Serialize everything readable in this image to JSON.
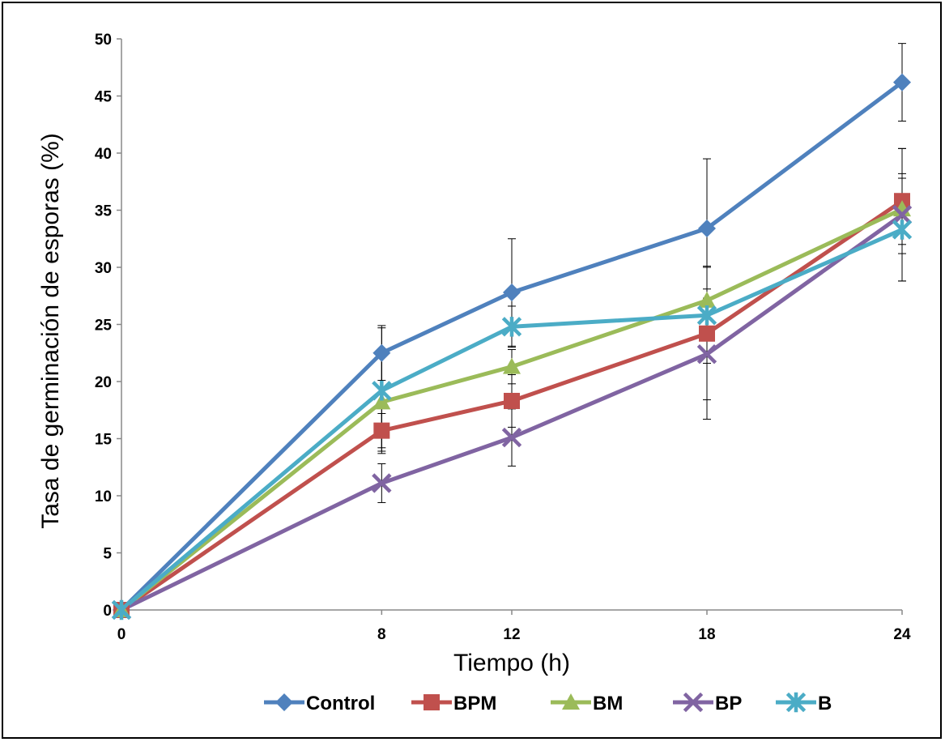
{
  "chart_data": {
    "type": "line",
    "x": [
      0,
      8,
      12,
      18,
      24
    ],
    "categories": [
      "0",
      "8",
      "12",
      "18",
      "24"
    ],
    "xlabel": "Tiempo (h)",
    "ylabel": "Tasa de germinación de esporas (%)",
    "ylim": [
      0,
      50
    ],
    "yticks": [
      "0",
      "5",
      "10",
      "15",
      "20",
      "25",
      "30",
      "35",
      "40",
      "45",
      "50"
    ],
    "grid": false,
    "legend_position": "bottom",
    "series": [
      {
        "name": "Control",
        "color": "#4f81bd",
        "marker": "diamond",
        "values": [
          0,
          22.5,
          27.8,
          33.4,
          46.2
        ],
        "error": [
          0,
          2.4,
          4.7,
          6.1,
          3.4
        ]
      },
      {
        "name": "BPM",
        "color": "#c0504d",
        "marker": "square",
        "values": [
          0,
          15.7,
          18.3,
          24.2,
          35.8
        ],
        "error": [
          0,
          1.5,
          2.3,
          5.8,
          4.6
        ]
      },
      {
        "name": "BM",
        "color": "#9bbb59",
        "marker": "triangle",
        "values": [
          0,
          18.2,
          21.3,
          27.1,
          35.1
        ],
        "error": [
          0,
          4.3,
          1.5,
          3.0,
          3.1
        ]
      },
      {
        "name": "BP",
        "color": "#8064a2",
        "marker": "x",
        "values": [
          0,
          11.1,
          15.1,
          22.4,
          34.6
        ],
        "error": [
          0,
          1.7,
          2.5,
          5.7,
          5.8
        ]
      },
      {
        "name": "B",
        "color": "#4bacc6",
        "marker": "star",
        "values": [
          0,
          19.2,
          24.8,
          25.8,
          33.3
        ],
        "error": [
          0,
          5.5,
          1.8,
          4.2,
          4.5
        ]
      }
    ]
  }
}
